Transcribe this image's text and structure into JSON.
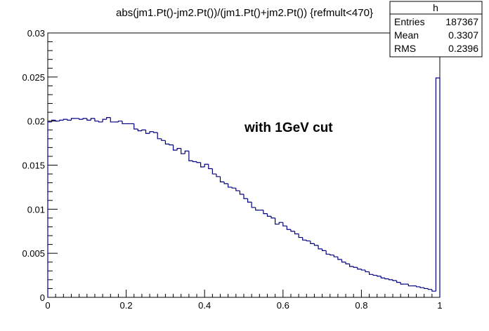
{
  "chart_data": {
    "type": "histogram",
    "title": "abs(jm1.Pt()-jm2.Pt())/(jm1.Pt()+jm2.Pt()) {refmult<470}",
    "xlabel": "",
    "ylabel": "",
    "xlim": [
      0,
      1
    ],
    "ylim": [
      0,
      0.03
    ],
    "x_ticks": [
      "0",
      "0.2",
      "0.4",
      "0.6",
      "0.8",
      "1"
    ],
    "y_ticks": [
      "0",
      "0.005",
      "0.01",
      "0.015",
      "0.02",
      "0.025",
      "0.03"
    ],
    "grid": false,
    "line_color": "#000080",
    "annotation": "with 1GeV cut",
    "stats_box": {
      "name": "h",
      "rows": [
        {
          "label": "Entries",
          "value": "187367"
        },
        {
          "label": "Mean",
          "value": "0.3307"
        },
        {
          "label": "RMS",
          "value": "0.2396"
        }
      ]
    },
    "bin_width": 0.01,
    "bin_low_edges": [
      0,
      0.01,
      0.02,
      0.03,
      0.04,
      0.05,
      0.06,
      0.07,
      0.08,
      0.09,
      0.1,
      0.11,
      0.12,
      0.13,
      0.14,
      0.15,
      0.16,
      0.17,
      0.18,
      0.19,
      0.2,
      0.21,
      0.22,
      0.23,
      0.24,
      0.25,
      0.26,
      0.27,
      0.28,
      0.29,
      0.3,
      0.31,
      0.32,
      0.33,
      0.34,
      0.35,
      0.36,
      0.37,
      0.38,
      0.39,
      0.4,
      0.41,
      0.42,
      0.43,
      0.44,
      0.45,
      0.46,
      0.47,
      0.48,
      0.49,
      0.5,
      0.51,
      0.52,
      0.53,
      0.54,
      0.55,
      0.56,
      0.57,
      0.58,
      0.59,
      0.6,
      0.61,
      0.62,
      0.63,
      0.64,
      0.65,
      0.66,
      0.67,
      0.68,
      0.69,
      0.7,
      0.71,
      0.72,
      0.73,
      0.74,
      0.75,
      0.76,
      0.77,
      0.78,
      0.79,
      0.8,
      0.81,
      0.82,
      0.83,
      0.84,
      0.85,
      0.86,
      0.87,
      0.88,
      0.89,
      0.9,
      0.91,
      0.92,
      0.93,
      0.94,
      0.95,
      0.96,
      0.97,
      0.98,
      0.99
    ],
    "values": [
      0.0199,
      0.0201,
      0.02,
      0.0201,
      0.0202,
      0.0201,
      0.0203,
      0.0203,
      0.0202,
      0.0203,
      0.0201,
      0.0203,
      0.02,
      0.0199,
      0.0202,
      0.0204,
      0.0199,
      0.0199,
      0.02,
      0.0197,
      0.0197,
      0.0197,
      0.0191,
      0.0189,
      0.019,
      0.0186,
      0.0188,
      0.0187,
      0.018,
      0.0178,
      0.0174,
      0.0173,
      0.0167,
      0.0169,
      0.0163,
      0.0166,
      0.0155,
      0.0154,
      0.0153,
      0.0148,
      0.0151,
      0.0146,
      0.014,
      0.0137,
      0.0131,
      0.0129,
      0.0125,
      0.0124,
      0.0121,
      0.0117,
      0.0112,
      0.0108,
      0.0102,
      0.0099,
      0.0099,
      0.0095,
      0.0092,
      0.009,
      0.0083,
      0.0085,
      0.0081,
      0.0077,
      0.0075,
      0.0072,
      0.0068,
      0.0065,
      0.0064,
      0.0061,
      0.0059,
      0.0055,
      0.0053,
      0.0049,
      0.0048,
      0.0046,
      0.0043,
      0.004,
      0.0038,
      0.0035,
      0.0034,
      0.0032,
      0.0031,
      0.0029,
      0.0026,
      0.0025,
      0.0024,
      0.0022,
      0.0021,
      0.002,
      0.0019,
      0.0017,
      0.0015,
      0.0015,
      0.0013,
      0.0013,
      0.0012,
      0.0011,
      0.001,
      0.0009,
      0.0007,
      0.0249
    ]
  }
}
